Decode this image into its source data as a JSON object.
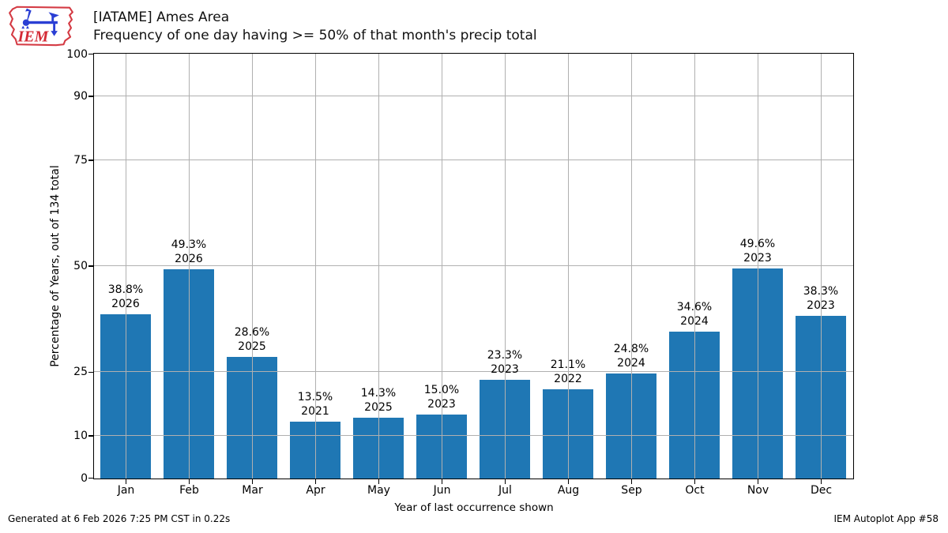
{
  "logo": {
    "text": "IEM"
  },
  "footer": {
    "left": "Generated at 6 Feb 2026 7:25 PM CST in 0.22s",
    "right": "IEM Autoplot App #58"
  },
  "chart_data": {
    "type": "bar",
    "title": "[IATAME] Ames Area",
    "subtitle": "Frequency of one day having >= 50% of that month's precip total",
    "categories": [
      "Jan",
      "Feb",
      "Mar",
      "Apr",
      "May",
      "Jun",
      "Jul",
      "Aug",
      "Sep",
      "Oct",
      "Nov",
      "Dec"
    ],
    "values": [
      38.8,
      49.3,
      28.6,
      13.5,
      14.3,
      15.0,
      23.3,
      21.1,
      24.8,
      34.6,
      49.6,
      38.3
    ],
    "bar_annotations": [
      {
        "pct": "38.8%",
        "year": "2026"
      },
      {
        "pct": "49.3%",
        "year": "2026"
      },
      {
        "pct": "28.6%",
        "year": "2025"
      },
      {
        "pct": "13.5%",
        "year": "2021"
      },
      {
        "pct": "14.3%",
        "year": "2025"
      },
      {
        "pct": "15.0%",
        "year": "2023"
      },
      {
        "pct": "23.3%",
        "year": "2023"
      },
      {
        "pct": "21.1%",
        "year": "2022"
      },
      {
        "pct": "24.8%",
        "year": "2024"
      },
      {
        "pct": "34.6%",
        "year": "2024"
      },
      {
        "pct": "49.6%",
        "year": "2023"
      },
      {
        "pct": "38.3%",
        "year": "2023"
      }
    ],
    "xlabel": "Year of last occurrence shown",
    "ylabel": "Percentage of Years, out of 134 total",
    "yticks": [
      0,
      10,
      25,
      50,
      75,
      90,
      100
    ],
    "ylim": [
      0,
      100
    ],
    "grid": "on",
    "legend": "none",
    "bar_color": "#1f77b4",
    "grid_color": "#b0b0b0",
    "axis_color": "#000000"
  }
}
